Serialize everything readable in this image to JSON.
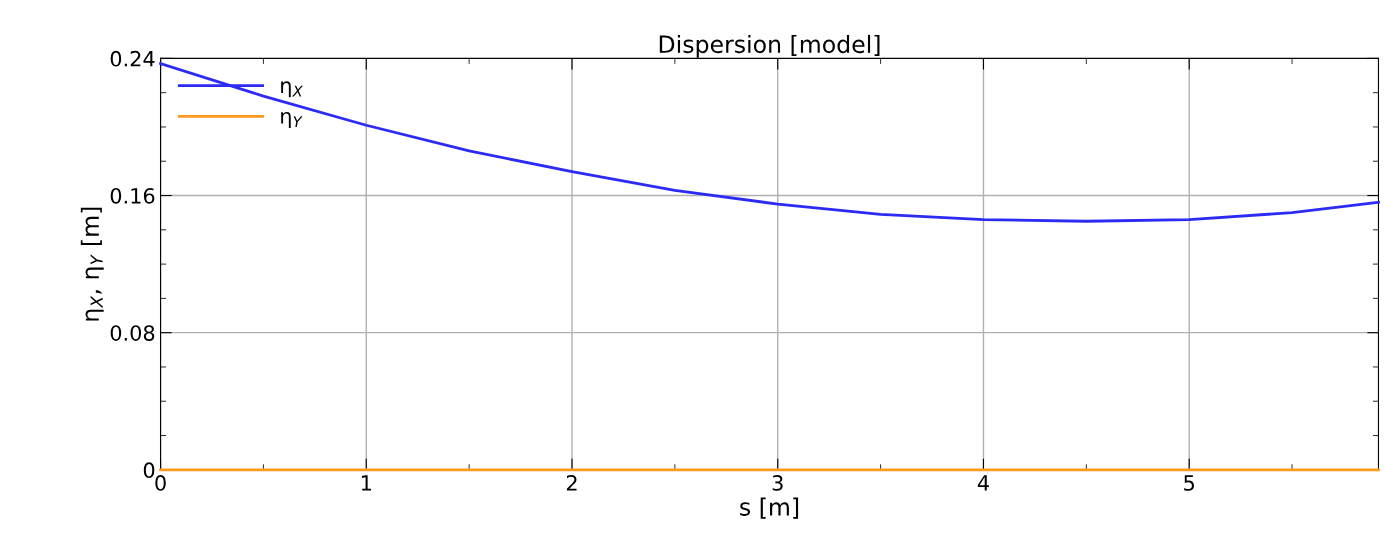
{
  "chart_data": {
    "type": "line",
    "title": "Dispersion [model]",
    "xlabel": "s [m]",
    "ylabel": "η$_{X}$, η$_{Y}$ [m]",
    "x": [
      0,
      0.5,
      1,
      1.5,
      2,
      2.5,
      3,
      3.5,
      4,
      4.5,
      5,
      5.5,
      5.92
    ],
    "series": [
      {
        "name": "η$_{X}$",
        "color": "#2b2bf5",
        "values": [
          0.237,
          0.218,
          0.201,
          0.186,
          0.174,
          0.163,
          0.155,
          0.149,
          0.146,
          0.145,
          0.146,
          0.15,
          0.156
        ]
      },
      {
        "name": "η$_{Y}$",
        "color": "#ff9a1e",
        "values": [
          0,
          0,
          0,
          0,
          0,
          0,
          0,
          0,
          0,
          0,
          0,
          0,
          0
        ]
      }
    ],
    "xlim": [
      0,
      5.92
    ],
    "ylim": [
      0,
      0.24
    ],
    "xticks": [
      0,
      {
        "value": 0.5,
        "label": null
      },
      1,
      {
        "value": 1.5,
        "label": null
      },
      2,
      {
        "value": 2.5,
        "label": null
      },
      3,
      {
        "value": 3.5,
        "label": null
      },
      4,
      {
        "value": 4.5,
        "label": null
      },
      5,
      {
        "value": 5.5,
        "label": null
      }
    ],
    "yticks": [
      0,
      {
        "value": 0.02,
        "label": null
      },
      {
        "value": 0.04,
        "label": null
      },
      {
        "value": 0.06,
        "label": null
      },
      0.08,
      {
        "value": 0.1,
        "label": null
      },
      {
        "value": 0.12,
        "label": null
      },
      {
        "value": 0.14,
        "label": null
      },
      0.16,
      {
        "value": 0.18,
        "label": null
      },
      {
        "value": 0.2,
        "label": null
      },
      {
        "value": 0.22,
        "label": null
      },
      0.24
    ],
    "grid": true,
    "legend": "top left",
    "marker": "none",
    "line_style": "solid"
  }
}
